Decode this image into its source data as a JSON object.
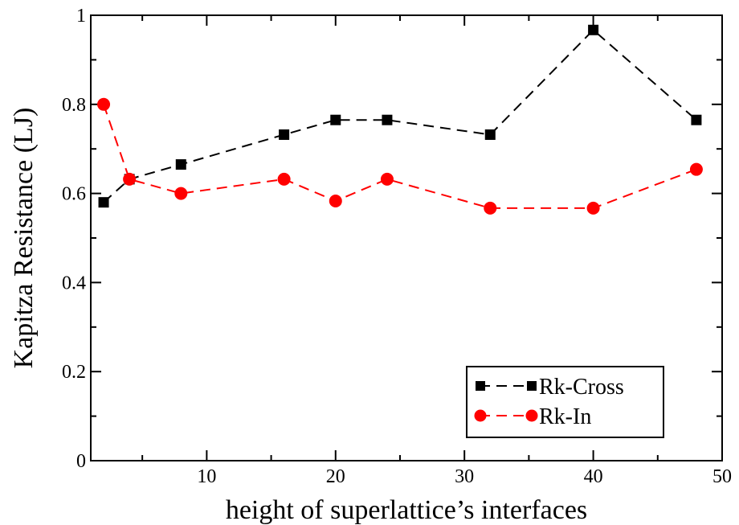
{
  "chart_data": {
    "type": "line",
    "xlabel": "height of superlattice’s interfaces",
    "ylabel": "Kapitza Resistance (LJ)",
    "xlim": [
      1,
      50
    ],
    "ylim": [
      0,
      1
    ],
    "x_ticks": [
      10,
      20,
      30,
      40,
      50
    ],
    "y_ticks": [
      0,
      0.2,
      0.4,
      0.6,
      0.8,
      1
    ],
    "x_tick_labels": [
      "10",
      "20",
      "30",
      "40",
      "50"
    ],
    "y_tick_labels": [
      "0",
      "0.2",
      "0.4",
      "0.6",
      "0.8",
      "1"
    ],
    "grid": false,
    "legend_position": "bottom-right",
    "series": [
      {
        "name": "Rk-Cross",
        "color": "#000000",
        "marker": "square",
        "line_style": "dashed",
        "x": [
          2,
          4,
          8,
          16,
          20,
          24,
          32,
          40,
          48
        ],
        "y": [
          0.58,
          0.632,
          0.665,
          0.732,
          0.765,
          0.765,
          0.732,
          0.967,
          0.765
        ]
      },
      {
        "name": "Rk-In",
        "color": "#ff0000",
        "marker": "circle",
        "line_style": "dashed",
        "x": [
          2,
          4,
          8,
          16,
          20,
          24,
          32,
          40,
          48
        ],
        "y": [
          0.8,
          0.632,
          0.6,
          0.632,
          0.583,
          0.632,
          0.567,
          0.567,
          0.654
        ]
      }
    ]
  }
}
